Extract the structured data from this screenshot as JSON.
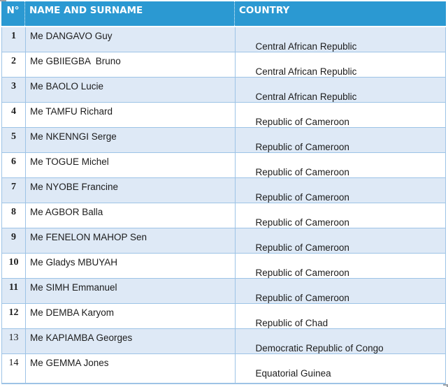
{
  "document": {
    "colors": {
      "header_bg": "#2B99D2",
      "band_bg": "#DEE9F6",
      "border": "#9DC3E6",
      "header_text": "#FFFFFF",
      "body_text": "#1C1C1C",
      "spellcheck_underline": "#FF1F1F"
    },
    "table": {
      "columns": [
        {
          "label": "N°"
        },
        {
          "label": "NAME AND SURNAME"
        },
        {
          "label": "COUNTRY"
        }
      ],
      "rows": [
        {
          "num": "1",
          "num_bold": true,
          "name": "Me DANGAVO Guy",
          "country": {
            "pre": "Central African ",
            "flagged": "Republic",
            "post": ""
          }
        },
        {
          "num": "2",
          "num_bold": true,
          "name": "Me GBIIEGBA  Bruno",
          "country": {
            "pre": "Central African ",
            "flagged": "Republic",
            "post": ""
          }
        },
        {
          "num": "3",
          "num_bold": true,
          "name": "Me BAOLO Lucie",
          "country": {
            "pre": "Central African ",
            "flagged": "Republic",
            "post": ""
          }
        },
        {
          "num": "4",
          "num_bold": true,
          "name": "Me TAMFU Richard",
          "country": {
            "pre": "",
            "flagged": "Republic",
            "post": " of Cameroon"
          }
        },
        {
          "num": "5",
          "num_bold": true,
          "name": "Me NKENNGI Serge",
          "country": {
            "pre": "",
            "flagged": "Republic",
            "post": " of Cameroon"
          }
        },
        {
          "num": "6",
          "num_bold": true,
          "name": "Me TOGUE Michel",
          "country": {
            "pre": "",
            "flagged": "Republic",
            "post": " of Cameroon"
          }
        },
        {
          "num": "7",
          "num_bold": true,
          "name": "Me NYOBE Francine",
          "country": {
            "pre": "",
            "flagged": "Republic",
            "post": " of Cameroon"
          }
        },
        {
          "num": "8",
          "num_bold": true,
          "name": "Me AGBOR Balla",
          "country": {
            "pre": "",
            "flagged": "Republic",
            "post": " of Cameroon"
          }
        },
        {
          "num": "9",
          "num_bold": true,
          "name": "Me FENELON MAHOP Sen",
          "country": {
            "pre": "",
            "flagged": "Republic",
            "post": " of Cameroon"
          }
        },
        {
          "num": "10",
          "num_bold": true,
          "name": "Me Gladys MBUYAH",
          "country": {
            "pre": "",
            "flagged": "Republic",
            "post": " of Cameroon"
          }
        },
        {
          "num": "11",
          "num_bold": true,
          "name": "Me SIMH Emmanuel",
          "country": {
            "pre": "",
            "flagged": "Republic",
            "post": " of Cameroon"
          }
        },
        {
          "num": "12",
          "num_bold": true,
          "name": "Me DEMBA Karyom",
          "country": {
            "pre": "Republic of Chad",
            "flagged": "",
            "post": ""
          }
        },
        {
          "num": "13",
          "num_bold": false,
          "name": "Me KAPIAMBA Georges",
          "country": {
            "pre": "Democratic Republic of Congo",
            "flagged": "",
            "post": ""
          }
        },
        {
          "num": "14",
          "num_bold": false,
          "name": "Me GEMMA Jones",
          "country": {
            "pre": "Equatorial Guinea",
            "flagged": "",
            "post": ""
          }
        }
      ]
    }
  }
}
